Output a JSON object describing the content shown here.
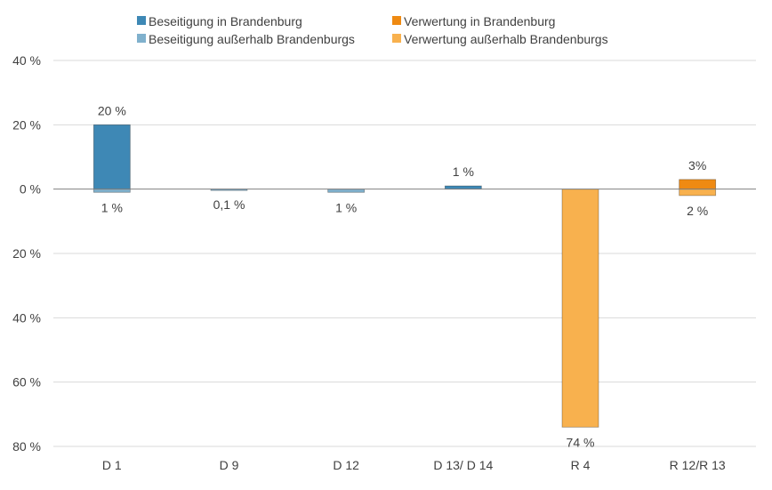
{
  "chart_data": {
    "type": "bar",
    "stacked": true,
    "diverging": true,
    "categories": [
      "D 1",
      "D 9",
      "D 12",
      "D 13/ D 14",
      "R 4",
      "R 12/R 13"
    ],
    "ylim": [
      -80,
      40
    ],
    "yticks": [
      40,
      20,
      0,
      -20,
      -40,
      -60,
      -80
    ],
    "ytick_labels": [
      "40 %",
      "20 %",
      "0 %",
      "20 %",
      "40 %",
      "60 %",
      "80 %"
    ],
    "grid": true,
    "legend_position": "top",
    "series": [
      {
        "name": "Beseitigung in Brandenburg",
        "color": "#3e88b5",
        "values": [
          20,
          0,
          0,
          1,
          0,
          0
        ]
      },
      {
        "name": "Verwertung in Brandenburg",
        "color": "#ef8a12",
        "values": [
          0,
          0,
          0,
          0,
          0,
          3
        ]
      },
      {
        "name": "Beseitigung außerhalb Brandenburgs",
        "color": "#80b1cd",
        "values": [
          -1,
          -0.1,
          -1,
          0,
          0,
          0
        ]
      },
      {
        "name": "Verwertung außerhalb Brandenburgs",
        "color": "#f8b14e",
        "values": [
          0,
          0,
          0,
          0,
          -74,
          -2
        ]
      }
    ],
    "labels_above": [
      "20 %",
      "",
      "",
      "1 %",
      "",
      "3%"
    ],
    "labels_below": [
      "1 %",
      "0,1 %",
      "1 %",
      "",
      "74 %",
      "2 %"
    ]
  }
}
